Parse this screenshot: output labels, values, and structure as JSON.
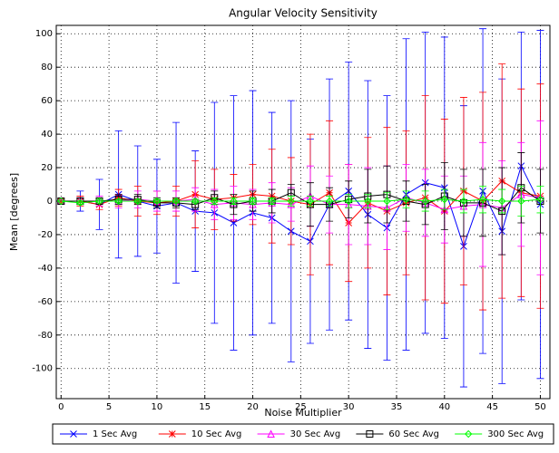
{
  "chart_data": {
    "type": "errorbar-line",
    "title": "Angular Velocity Sensitivity",
    "x_label": "Noise Multiplier",
    "y_label": "Mean [degrees]",
    "x": [
      0,
      2,
      4,
      6,
      8,
      10,
      12,
      14,
      16,
      18,
      20,
      22,
      24,
      26,
      28,
      30,
      32,
      34,
      36,
      38,
      40,
      42,
      44,
      46,
      48,
      50
    ],
    "xlim": [
      -0.5,
      51
    ],
    "ylim": [
      -118,
      105
    ],
    "xticks": [
      0,
      5,
      10,
      15,
      20,
      25,
      30,
      35,
      40,
      45,
      50
    ],
    "yticks": [
      100,
      80,
      60,
      40,
      20,
      0,
      -20,
      -40,
      -60,
      -80,
      -100
    ],
    "grid": true,
    "legend": "bottom",
    "series": [
      {
        "name": "1 Sec Avg",
        "color": "#0000ff",
        "marker": "x",
        "values": [
          0,
          0,
          -2,
          4,
          0,
          -3,
          -1,
          -6,
          -7,
          -13,
          -7,
          -10,
          -18,
          -24,
          -2,
          6,
          -8,
          -16,
          4,
          11,
          8,
          -27,
          6,
          -18,
          21,
          -2
        ],
        "errors": [
          0,
          6,
          15,
          38,
          33,
          28,
          48,
          36,
          66,
          76,
          73,
          63,
          78,
          61,
          75,
          77,
          80,
          79,
          93,
          90,
          90,
          84,
          97,
          91,
          80,
          104
        ]
      },
      {
        "name": "10 Sec Avg",
        "color": "#ff0000",
        "marker": "star",
        "values": [
          0,
          0,
          -2,
          2,
          0,
          -1,
          0,
          4,
          1,
          2,
          4,
          3,
          0,
          -2,
          5,
          -13,
          -1,
          -6,
          -1,
          2,
          -6,
          6,
          0,
          12,
          5,
          3
        ],
        "errors": [
          0,
          3,
          3,
          5,
          9,
          7,
          9,
          20,
          18,
          14,
          18,
          28,
          26,
          42,
          43,
          35,
          39,
          50,
          43,
          61,
          55,
          56,
          65,
          70,
          62,
          67
        ]
      },
      {
        "name": "30 Sec Avg",
        "color": "#ff00ff",
        "marker": "triangle",
        "values": [
          0,
          0,
          0,
          0,
          1,
          0,
          0,
          1,
          -2,
          -1,
          -2,
          -1,
          -2,
          3,
          -2,
          -2,
          -3,
          -4,
          2,
          -1,
          -5,
          -3,
          -2,
          -4,
          4,
          2
        ],
        "errors": [
          0,
          2,
          3,
          4,
          5,
          6,
          6,
          7,
          9,
          10,
          9,
          12,
          10,
          18,
          17,
          24,
          23,
          25,
          20,
          20,
          20,
          18,
          37,
          28,
          31,
          46
        ]
      },
      {
        "name": "60 Sec Avg",
        "color": "#000000",
        "marker": "square",
        "values": [
          0,
          0,
          0,
          1,
          1,
          -1,
          -1,
          -2,
          2,
          -2,
          0,
          0,
          5,
          -2,
          -2,
          1,
          3,
          4,
          0,
          -2,
          3,
          -1,
          -1,
          -6,
          8,
          0
        ],
        "errors": [
          0,
          2,
          2,
          3,
          3,
          3,
          3,
          3,
          4,
          6,
          6,
          7,
          5,
          13,
          10,
          11,
          16,
          17,
          12,
          12,
          20,
          20,
          20,
          26,
          21,
          19
        ]
      },
      {
        "name": "300 Sec Avg",
        "color": "#00ff00",
        "marker": "diamond",
        "values": [
          0,
          -1,
          0,
          0,
          0,
          0,
          0,
          0,
          0,
          0,
          0,
          0,
          0,
          0,
          0,
          0,
          0,
          0,
          1,
          0,
          1,
          0,
          1,
          0,
          0,
          1
        ],
        "errors": [
          0,
          1,
          1,
          1,
          1,
          1,
          1,
          1,
          2,
          2,
          2,
          2,
          3,
          3,
          3,
          4,
          4,
          5,
          5,
          6,
          6,
          7,
          8,
          7,
          9,
          8
        ]
      }
    ]
  }
}
